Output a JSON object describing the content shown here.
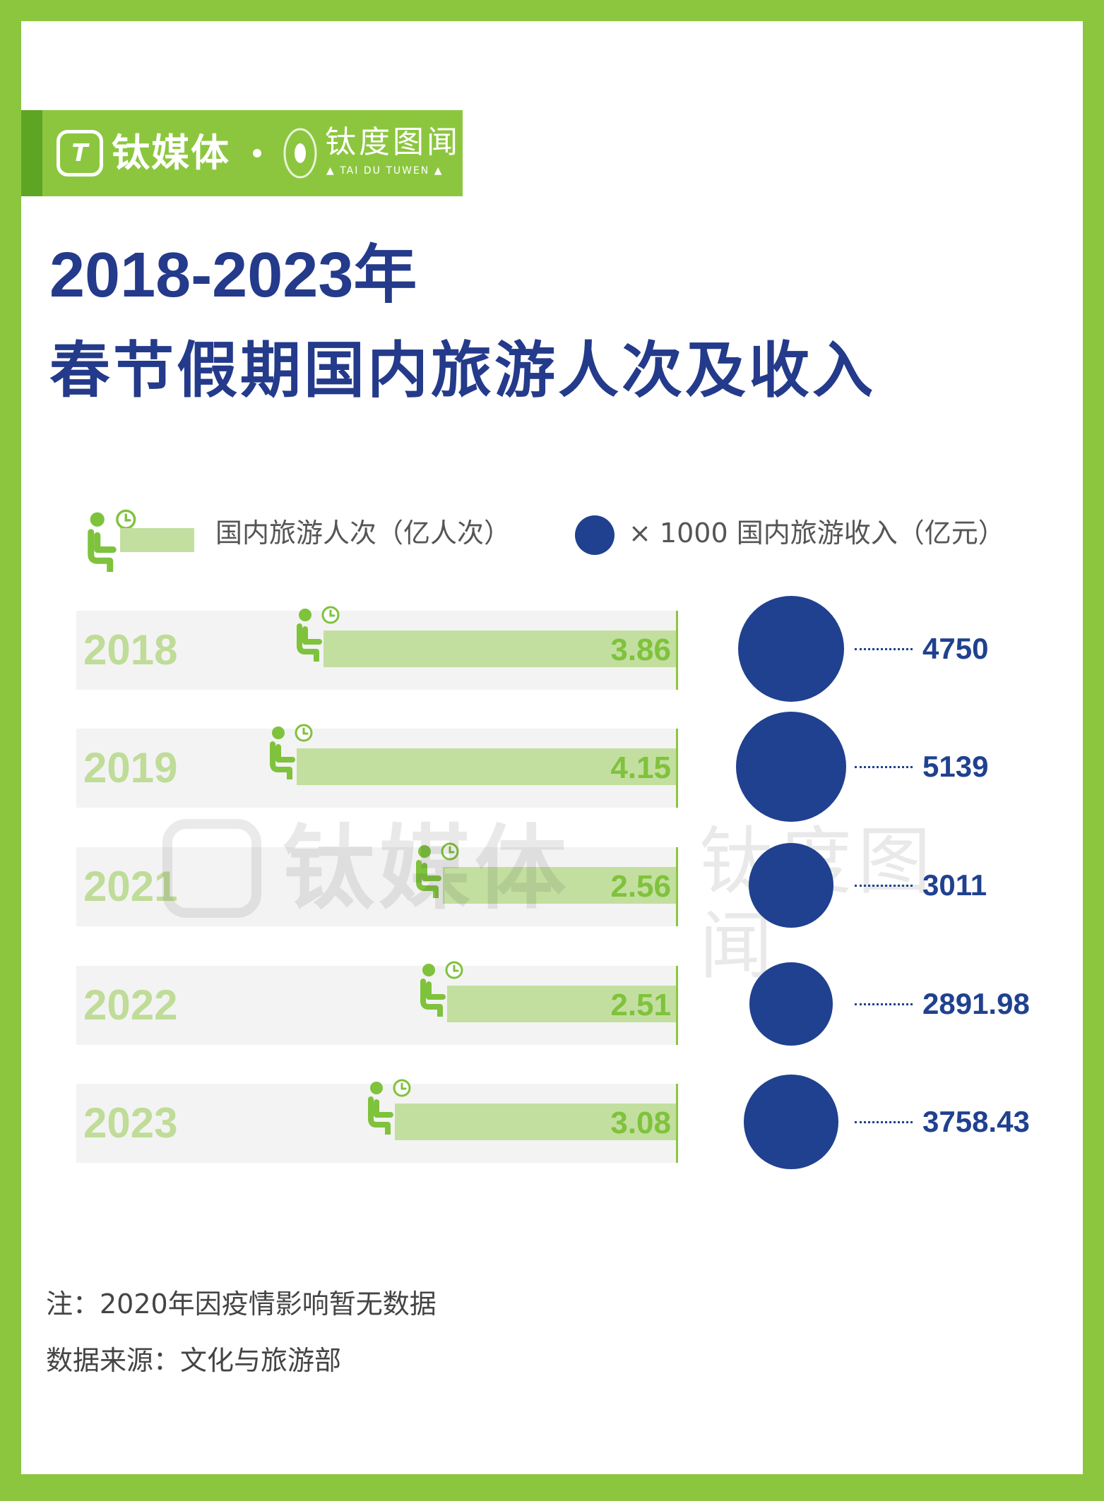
{
  "brand": {
    "logo_glyph": "T",
    "name": "钛媒体",
    "partner_name": "钛度图闻",
    "partner_sub": "▲ TAI DU TUWEN ▲",
    "colors": {
      "green": "#8cc63f",
      "dark_green": "#5fa524"
    }
  },
  "title": {
    "line1": "2018-2023年",
    "line2": "春节假期国内旅游人次及收入"
  },
  "legend": {
    "visitors_label": "国内旅游人次（亿人次）",
    "revenue_label": "× 1000 国内旅游收入（亿元）",
    "visitors_icon": "seated-person-clock-icon",
    "revenue_icon": "blue-circle-icon"
  },
  "chart_data": {
    "type": "bar",
    "categories": [
      "2018",
      "2019",
      "2021",
      "2022",
      "2023"
    ],
    "series": [
      {
        "name": "国内旅游人次（亿人次）",
        "values": [
          3.86,
          4.15,
          2.56,
          2.51,
          3.08
        ],
        "labels": [
          "3.86",
          "4.15",
          "2.56",
          "2.51",
          "3.08"
        ],
        "color": "#c3df9f"
      },
      {
        "name": "国内旅游收入（亿元）",
        "values": [
          4750,
          5139,
          3011,
          2891.98,
          3758.43
        ],
        "labels": [
          "4750",
          "5139",
          "3011",
          "2891.98",
          "3758.43"
        ],
        "color": "#20418f"
      }
    ]
  },
  "watermark": {
    "name": "钛媒体",
    "partner_name": "钛度图闻",
    "partner_sub": "TAI DU TUWEN"
  },
  "notes": {
    "note": "注：2020年因疫情影响暂无数据",
    "source": "数据来源：文化与旅游部"
  }
}
